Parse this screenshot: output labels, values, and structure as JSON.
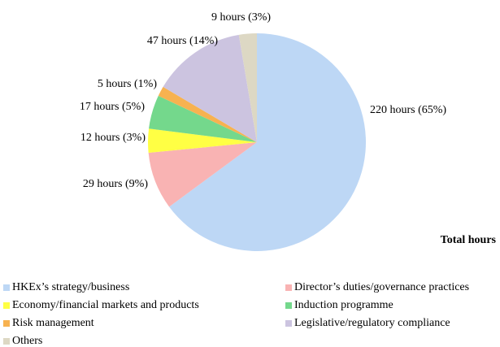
{
  "chart_data": {
    "type": "pie",
    "title": "Total hours",
    "categories": [
      "HKEx’s strategy/business",
      "Director’s duties/governance practices",
      "Economy/financial markets and products",
      "Induction programme",
      "Risk management",
      "Legislative/regulatory compliance",
      "Others"
    ],
    "values": [
      220,
      29,
      12,
      17,
      5,
      47,
      9
    ],
    "value_labels": [
      "220 hours (65%)",
      "29 hours (9%)",
      "12 hours (3%)",
      "17 hours (5%)",
      "5 hours (1%)",
      "47 hours (14%)",
      "9 hours (3%)"
    ],
    "colors": [
      "#bdd7f5",
      "#f9b3b3",
      "#ffff44",
      "#74d88c",
      "#f7b250",
      "#ccc4e0",
      "#ddd8c4"
    ]
  }
}
